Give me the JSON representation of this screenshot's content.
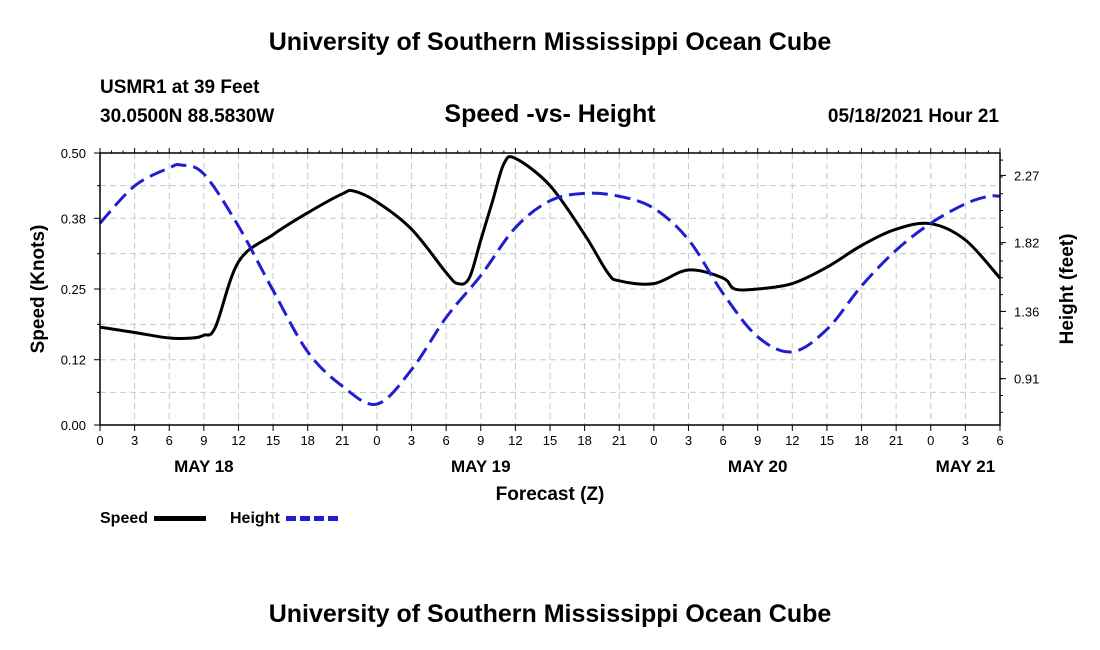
{
  "header": {
    "title": "University of Southern Mississippi Ocean Cube",
    "station": "USMR1 at 39 Feet",
    "coords": "30.0500N  88.5830W",
    "chart_title": "Speed -vs- Height",
    "datetime": "05/18/2021 Hour 21"
  },
  "footer": {
    "title": "University of Southern Mississippi Ocean Cube"
  },
  "legend": {
    "speed_label": "Speed",
    "height_label": "Height",
    "speed_color": "#000000",
    "height_color": "#1f1fd0"
  },
  "chart_data": {
    "type": "line",
    "title": "Speed -vs- Height",
    "xlabel": "Forecast (Z)",
    "ylabel": "Speed (Knots)",
    "y2label": "Height (feet)",
    "xlim": [
      0,
      78
    ],
    "ylim": [
      0,
      0.5
    ],
    "y2lim": [
      0.6,
      2.42
    ],
    "x_tick_values": [
      0,
      3,
      6,
      9,
      12,
      15,
      18,
      21,
      24,
      27,
      30,
      33,
      36,
      39,
      42,
      45,
      48,
      51,
      54,
      57,
      60,
      63,
      66,
      69,
      72,
      75,
      78
    ],
    "x_tick_labels": [
      "0",
      "3",
      "6",
      "9",
      "12",
      "15",
      "18",
      "21",
      "0",
      "3",
      "6",
      "9",
      "12",
      "15",
      "18",
      "21",
      "0",
      "3",
      "6",
      "9",
      "12",
      "15",
      "18",
      "21",
      "0",
      "3",
      "6"
    ],
    "day_labels": [
      {
        "x": 9,
        "label": "MAY 18"
      },
      {
        "x": 33,
        "label": "MAY 19"
      },
      {
        "x": 57,
        "label": "MAY 20"
      },
      {
        "x": 75,
        "label": "MAY 21"
      }
    ],
    "y_ticks": [
      0.0,
      0.12,
      0.25,
      0.38,
      0.5
    ],
    "y_tick_labels": [
      "0.00",
      "0.12",
      "0.25",
      "0.38",
      "0.50"
    ],
    "y2_ticks": [
      0.91,
      1.36,
      1.82,
      2.27
    ],
    "y2_tick_labels": [
      "0.91",
      "1.36",
      "1.82",
      "2.27"
    ],
    "grid": true,
    "series": [
      {
        "name": "Speed",
        "axis": "left",
        "style": "solid",
        "color": "#000000",
        "x": [
          0,
          3,
          6,
          8,
          9,
          10,
          12,
          15,
          18,
          21,
          22,
          24,
          27,
          30,
          31,
          32,
          33,
          34,
          35,
          36,
          39,
          42,
          44,
          45,
          48,
          51,
          54,
          55,
          57,
          60,
          63,
          66,
          69,
          72,
          75,
          78
        ],
        "y": [
          0.18,
          0.17,
          0.16,
          0.16,
          0.165,
          0.18,
          0.3,
          0.35,
          0.39,
          0.425,
          0.43,
          0.41,
          0.36,
          0.28,
          0.26,
          0.27,
          0.34,
          0.41,
          0.48,
          0.49,
          0.44,
          0.35,
          0.28,
          0.265,
          0.26,
          0.285,
          0.27,
          0.25,
          0.25,
          0.26,
          0.29,
          0.33,
          0.36,
          0.37,
          0.34,
          0.27
        ]
      },
      {
        "name": "Height",
        "axis": "right",
        "style": "dashed",
        "color": "#1f1fd0",
        "x": [
          0,
          3,
          6,
          7,
          9,
          12,
          15,
          18,
          21,
          24,
          27,
          30,
          33,
          36,
          39,
          42,
          45,
          48,
          51,
          54,
          57,
          60,
          63,
          66,
          69,
          72,
          75,
          77,
          78
        ],
        "y": [
          1.95,
          2.2,
          2.32,
          2.34,
          2.28,
          1.93,
          1.5,
          1.09,
          0.86,
          0.74,
          0.97,
          1.32,
          1.6,
          1.92,
          2.1,
          2.15,
          2.13,
          2.05,
          1.84,
          1.48,
          1.19,
          1.09,
          1.24,
          1.53,
          1.77,
          1.95,
          2.08,
          2.13,
          2.13
        ]
      }
    ]
  }
}
